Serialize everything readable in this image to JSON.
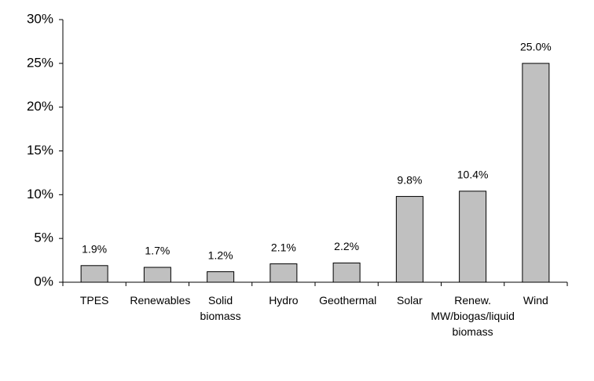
{
  "chart_data": {
    "type": "bar",
    "categories": [
      "TPES",
      "Renewables",
      "Solid biomass",
      "Hydro",
      "Geothermal",
      "Solar",
      "Renew. MW/biogas/liquid biomass",
      "Wind"
    ],
    "values": [
      1.9,
      1.7,
      1.2,
      2.1,
      2.2,
      9.8,
      10.4,
      25.0
    ],
    "value_labels": [
      "1.9%",
      "1.7%",
      "1.2%",
      "2.1%",
      "2.2%",
      "9.8%",
      "10.4%",
      "25.0%"
    ],
    "color": "#c0c0c0",
    "ylim": [
      0,
      30
    ],
    "yticks": [
      {
        "value": 0,
        "label": "0%"
      },
      {
        "value": 5,
        "label": "5%"
      },
      {
        "value": 10,
        "label": "10%"
      },
      {
        "value": 15,
        "label": "15%"
      },
      {
        "value": 20,
        "label": "20%"
      },
      {
        "value": 25,
        "label": "25%"
      },
      {
        "value": 30,
        "label": "30%"
      }
    ],
    "grid": false
  }
}
